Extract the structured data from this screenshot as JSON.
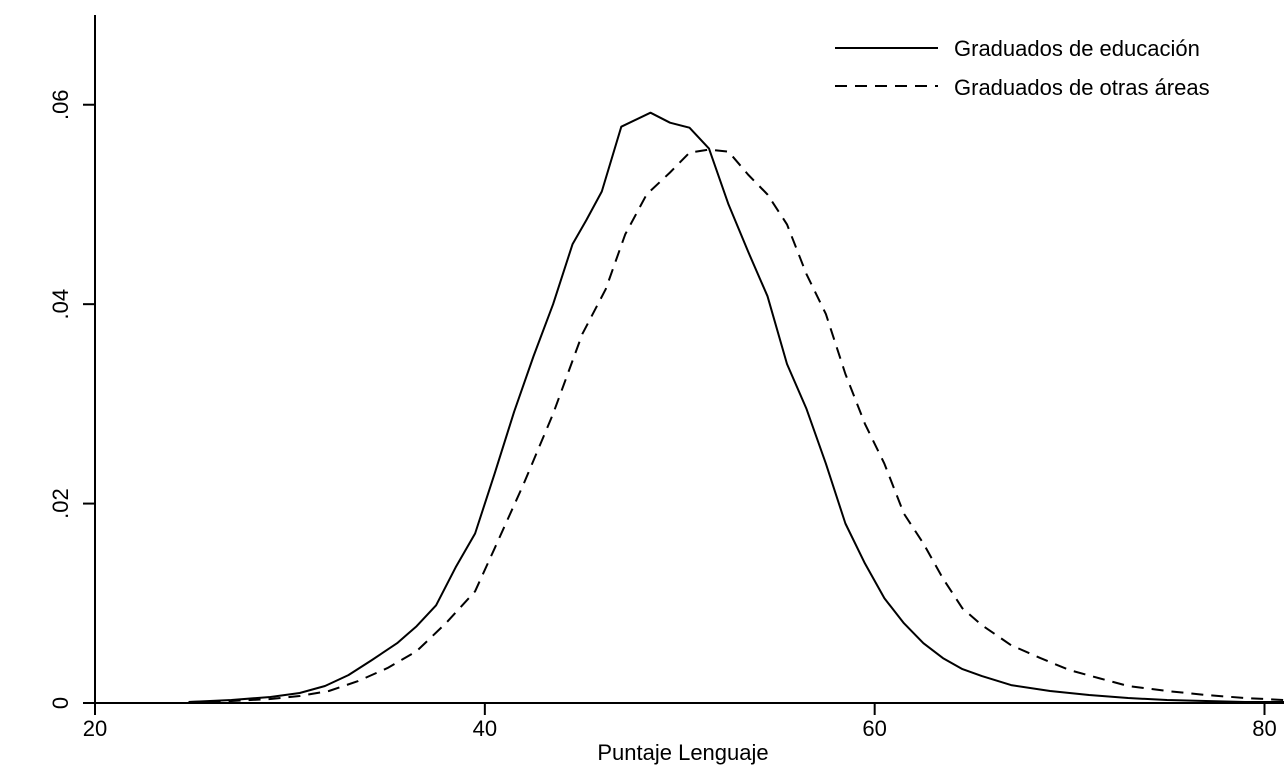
{
  "chart_data": {
    "type": "line",
    "title": "",
    "xlabel": "Puntaje Lenguaje",
    "ylabel": "",
    "xlim": [
      20,
      81
    ],
    "ylim": [
      0,
      0.069
    ],
    "xticks": [
      20,
      40,
      60,
      80
    ],
    "yticks": [
      0,
      0.02,
      0.04,
      0.06
    ],
    "xtick_labels": [
      "20",
      "40",
      "60",
      "80"
    ],
    "ytick_labels": [
      "0",
      ".02",
      ".04",
      ".06"
    ],
    "grid": false,
    "legend_position": "top-right",
    "series": [
      {
        "name": "Graduados de educación",
        "style": "solid",
        "color": "#000000",
        "points": [
          [
            24.8,
            0.0001
          ],
          [
            27,
            0.0003
          ],
          [
            29,
            0.0006
          ],
          [
            30.5,
            0.001
          ],
          [
            31.8,
            0.0017
          ],
          [
            33,
            0.0028
          ],
          [
            34.2,
            0.0043
          ],
          [
            35.5,
            0.006
          ],
          [
            36.5,
            0.0077
          ],
          [
            37.5,
            0.0098
          ],
          [
            38.5,
            0.0136
          ],
          [
            39.5,
            0.017
          ],
          [
            40.5,
            0.023
          ],
          [
            41.5,
            0.0292
          ],
          [
            42.5,
            0.0348
          ],
          [
            43.5,
            0.04
          ],
          [
            44.5,
            0.046
          ],
          [
            45.2,
            0.0484
          ],
          [
            46,
            0.0513
          ],
          [
            47,
            0.0578
          ],
          [
            48.5,
            0.0592
          ],
          [
            49.5,
            0.0582
          ],
          [
            50.5,
            0.0577
          ],
          [
            51.5,
            0.0556
          ],
          [
            52.5,
            0.05
          ],
          [
            53.5,
            0.0453
          ],
          [
            54.5,
            0.0408
          ],
          [
            55.5,
            0.034
          ],
          [
            56.5,
            0.0295
          ],
          [
            57.5,
            0.024
          ],
          [
            58.5,
            0.018
          ],
          [
            59.5,
            0.014
          ],
          [
            60.5,
            0.0105
          ],
          [
            61.5,
            0.008
          ],
          [
            62.5,
            0.006
          ],
          [
            63.5,
            0.0045
          ],
          [
            64.5,
            0.0034
          ],
          [
            65.5,
            0.0027
          ],
          [
            67,
            0.0018
          ],
          [
            69,
            0.0012
          ],
          [
            71,
            0.0008
          ],
          [
            73,
            0.0005
          ],
          [
            75,
            0.0003
          ],
          [
            77,
            0.0002
          ],
          [
            79,
            0.0001
          ],
          [
            81,
            0.0001
          ]
        ]
      },
      {
        "name": "Graduados de otras áreas",
        "style": "dashed",
        "color": "#000000",
        "points": [
          [
            24.8,
            0.0001
          ],
          [
            27,
            0.0002
          ],
          [
            29,
            0.0004
          ],
          [
            30.5,
            0.0007
          ],
          [
            32,
            0.0012
          ],
          [
            33.5,
            0.0022
          ],
          [
            35,
            0.0035
          ],
          [
            36.5,
            0.0052
          ],
          [
            38,
            0.008
          ],
          [
            39.5,
            0.0112
          ],
          [
            40.5,
            0.0155
          ],
          [
            42,
            0.022
          ],
          [
            43.5,
            0.029
          ],
          [
            45,
            0.037
          ],
          [
            46.2,
            0.0415
          ],
          [
            47.2,
            0.047
          ],
          [
            48.3,
            0.051
          ],
          [
            49.5,
            0.0532
          ],
          [
            50.5,
            0.0552
          ],
          [
            51.5,
            0.0555
          ],
          [
            52.5,
            0.0553
          ],
          [
            53.5,
            0.053
          ],
          [
            54.5,
            0.051
          ],
          [
            55.5,
            0.048
          ],
          [
            56.5,
            0.043
          ],
          [
            57.5,
            0.039
          ],
          [
            58.5,
            0.033
          ],
          [
            59.5,
            0.028
          ],
          [
            60.5,
            0.024
          ],
          [
            61.5,
            0.019
          ],
          [
            62.5,
            0.016
          ],
          [
            63.5,
            0.0125
          ],
          [
            64.5,
            0.0095
          ],
          [
            65.5,
            0.0078
          ],
          [
            67,
            0.0058
          ],
          [
            68.5,
            0.0045
          ],
          [
            70,
            0.0033
          ],
          [
            71.5,
            0.0025
          ],
          [
            73,
            0.0017
          ],
          [
            75,
            0.0012
          ],
          [
            77,
            0.0008
          ],
          [
            79,
            0.0005
          ],
          [
            81,
            0.0003
          ]
        ]
      }
    ]
  }
}
